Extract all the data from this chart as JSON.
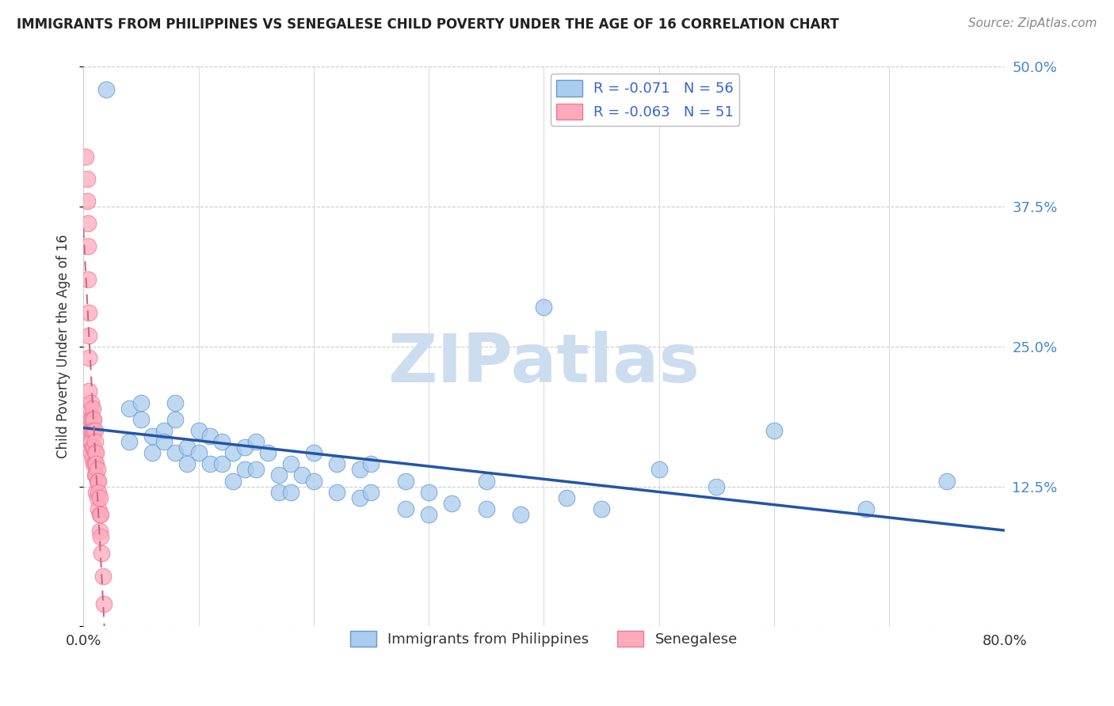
{
  "title": "IMMIGRANTS FROM PHILIPPINES VS SENEGALESE CHILD POVERTY UNDER THE AGE OF 16 CORRELATION CHART",
  "source": "Source: ZipAtlas.com",
  "ylabel": "Child Poverty Under the Age of 16",
  "xlim": [
    0.0,
    0.8
  ],
  "ylim": [
    0.0,
    0.5
  ],
  "yticks": [
    0.0,
    0.125,
    0.25,
    0.375,
    0.5
  ],
  "yticklabels_right": [
    "",
    "12.5%",
    "25.0%",
    "37.5%",
    "50.0%"
  ],
  "xtick_positions": [
    0.0,
    0.1,
    0.2,
    0.3,
    0.4,
    0.5,
    0.6,
    0.7,
    0.8
  ],
  "xticklabels": [
    "0.0%",
    "",
    "",
    "",
    "",
    "",
    "",
    "",
    "80.0%"
  ],
  "blue_color": "#aaccee",
  "blue_edge": "#6699cc",
  "pink_color": "#ffaabb",
  "pink_edge": "#ee7799",
  "line_blue": "#2255aa",
  "line_pink": "#cc6688",
  "legend_label1": "Immigrants from Philippines",
  "legend_label2": "Senegalese",
  "blue_R": -0.071,
  "blue_N": 56,
  "pink_R": -0.063,
  "pink_N": 51,
  "watermark": "ZIPatlas",
  "blue_x": [
    0.02,
    0.04,
    0.04,
    0.05,
    0.05,
    0.06,
    0.06,
    0.07,
    0.07,
    0.08,
    0.08,
    0.08,
    0.09,
    0.09,
    0.1,
    0.1,
    0.11,
    0.11,
    0.12,
    0.12,
    0.13,
    0.13,
    0.14,
    0.14,
    0.15,
    0.15,
    0.16,
    0.17,
    0.17,
    0.18,
    0.18,
    0.19,
    0.2,
    0.2,
    0.22,
    0.22,
    0.24,
    0.24,
    0.25,
    0.25,
    0.28,
    0.28,
    0.3,
    0.3,
    0.32,
    0.35,
    0.35,
    0.38,
    0.4,
    0.42,
    0.45,
    0.5,
    0.55,
    0.6,
    0.68,
    0.75
  ],
  "blue_y": [
    0.48,
    0.195,
    0.165,
    0.2,
    0.185,
    0.17,
    0.155,
    0.175,
    0.165,
    0.2,
    0.185,
    0.155,
    0.16,
    0.145,
    0.175,
    0.155,
    0.17,
    0.145,
    0.165,
    0.145,
    0.155,
    0.13,
    0.16,
    0.14,
    0.165,
    0.14,
    0.155,
    0.135,
    0.12,
    0.145,
    0.12,
    0.135,
    0.155,
    0.13,
    0.145,
    0.12,
    0.14,
    0.115,
    0.145,
    0.12,
    0.13,
    0.105,
    0.12,
    0.1,
    0.11,
    0.13,
    0.105,
    0.1,
    0.285,
    0.115,
    0.105,
    0.14,
    0.125,
    0.175,
    0.105,
    0.13
  ],
  "pink_x": [
    0.002,
    0.003,
    0.003,
    0.004,
    0.004,
    0.004,
    0.005,
    0.005,
    0.005,
    0.005,
    0.006,
    0.006,
    0.006,
    0.006,
    0.007,
    0.007,
    0.007,
    0.007,
    0.007,
    0.008,
    0.008,
    0.008,
    0.008,
    0.008,
    0.009,
    0.009,
    0.009,
    0.009,
    0.01,
    0.01,
    0.01,
    0.01,
    0.01,
    0.011,
    0.011,
    0.011,
    0.011,
    0.012,
    0.012,
    0.012,
    0.013,
    0.013,
    0.013,
    0.014,
    0.014,
    0.014,
    0.015,
    0.015,
    0.016,
    0.017,
    0.018
  ],
  "pink_y": [
    0.42,
    0.4,
    0.38,
    0.36,
    0.34,
    0.31,
    0.28,
    0.26,
    0.24,
    0.21,
    0.195,
    0.185,
    0.175,
    0.165,
    0.2,
    0.185,
    0.175,
    0.165,
    0.155,
    0.195,
    0.185,
    0.175,
    0.16,
    0.15,
    0.185,
    0.175,
    0.16,
    0.145,
    0.175,
    0.165,
    0.155,
    0.145,
    0.135,
    0.155,
    0.145,
    0.135,
    0.12,
    0.14,
    0.13,
    0.115,
    0.13,
    0.12,
    0.105,
    0.115,
    0.1,
    0.085,
    0.1,
    0.08,
    0.065,
    0.045,
    0.02
  ]
}
